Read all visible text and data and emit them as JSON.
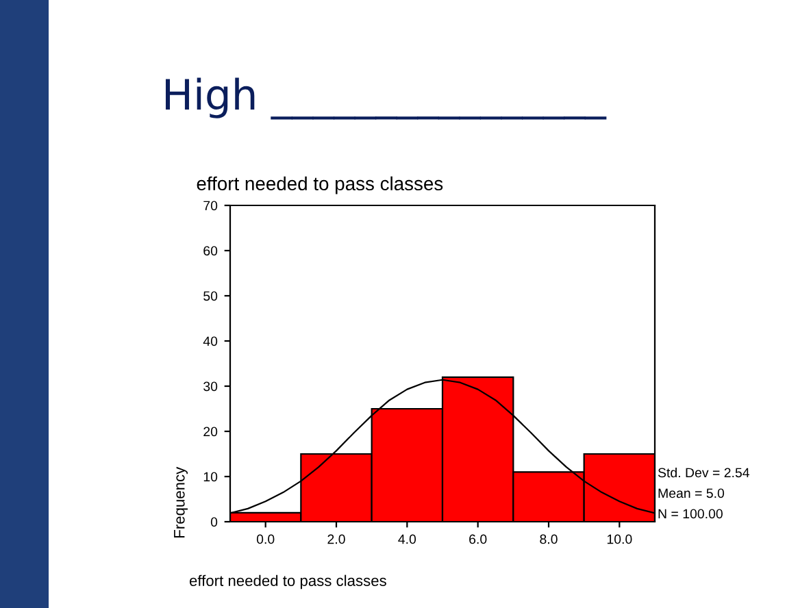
{
  "chart_data": {
    "type": "histogram",
    "title": "effort needed to pass classes",
    "xlabel": "effort needed to pass classes",
    "ylabel": "Frequency",
    "bins": [
      -1,
      1,
      3,
      5,
      7,
      9,
      11
    ],
    "values": [
      2,
      15,
      25,
      32,
      11,
      15
    ],
    "color": "#ff0000",
    "series": [
      {
        "type": "line",
        "color": "#000000",
        "x": [
          -1,
          -0.5,
          0,
          0.5,
          1,
          1.5,
          2,
          2.5,
          3,
          3.5,
          4,
          4.5,
          5,
          5.5,
          6,
          6.5,
          7,
          7.5,
          8,
          8.5,
          9,
          9.5,
          10,
          10.5,
          11
        ],
        "values": [
          1.9,
          2.9,
          4.5,
          6.5,
          9.0,
          12.1,
          15.7,
          19.7,
          23.5,
          26.9,
          29.3,
          30.8,
          31.4,
          30.8,
          29.3,
          26.9,
          23.5,
          19.7,
          15.7,
          12.1,
          9.0,
          6.5,
          4.5,
          2.9,
          1.9
        ]
      }
    ],
    "xlim": [
      -1,
      11
    ],
    "ylim": [
      0,
      70
    ],
    "xticks": [
      {
        "value": 0,
        "label": "0.0"
      },
      {
        "value": 2,
        "label": "2.0"
      },
      {
        "value": 4,
        "label": "4.0"
      },
      {
        "value": 6,
        "label": "6.0"
      },
      {
        "value": 8,
        "label": "8.0"
      },
      {
        "value": 10,
        "label": "10.0"
      }
    ],
    "yticks": [
      0,
      10,
      20,
      30,
      40,
      50,
      60,
      70
    ],
    "annotations": [
      "Std. Dev = 2.54",
      "Mean = 5.0",
      "N = 100.00",
      "High ________________"
    ]
  }
}
